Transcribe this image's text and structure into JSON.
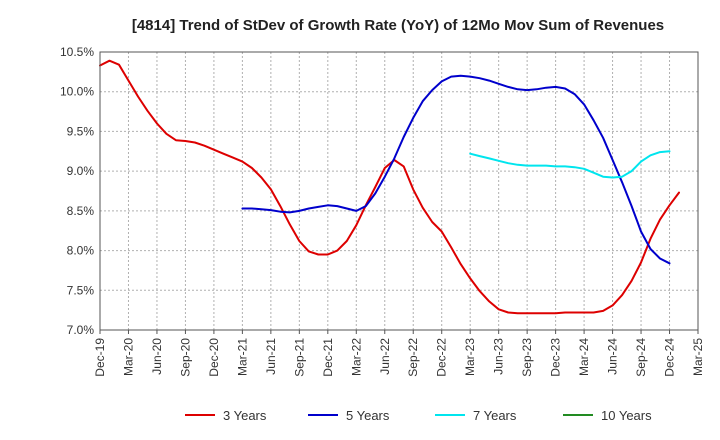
{
  "chart_data": {
    "type": "line",
    "title": "[4814]  Trend of StDev of Growth Rate (YoY) of 12Mo Mov Sum of Revenues",
    "xlabel": "",
    "ylabel": "",
    "ylim": [
      7.0,
      10.5
    ],
    "yticks": [
      7.0,
      7.5,
      8.0,
      8.5,
      9.0,
      9.5,
      10.0,
      10.5
    ],
    "ytick_labels": [
      "7.0%",
      "7.5%",
      "8.0%",
      "8.5%",
      "9.0%",
      "9.5%",
      "10.0%",
      "10.5%"
    ],
    "x_start": "Dec-19",
    "x_months_total": 63,
    "xtick_labels": [
      "Dec-19",
      "Mar-20",
      "Jun-20",
      "Sep-20",
      "Dec-20",
      "Mar-21",
      "Jun-21",
      "Sep-21",
      "Dec-21",
      "Mar-22",
      "Jun-22",
      "Sep-22",
      "Dec-22",
      "Mar-23",
      "Jun-23",
      "Sep-23",
      "Dec-23",
      "Mar-24",
      "Jun-24",
      "Sep-24",
      "Dec-24",
      "Mar-25"
    ],
    "grid": true,
    "legend_position": "bottom",
    "series": [
      {
        "name": "3 Years",
        "color": "#dd0000",
        "start_index": 0,
        "values": [
          10.33,
          10.39,
          10.34,
          10.14,
          9.94,
          9.76,
          9.6,
          9.47,
          9.39,
          9.38,
          9.36,
          9.32,
          9.27,
          9.22,
          9.17,
          9.12,
          9.04,
          8.92,
          8.77,
          8.56,
          8.33,
          8.12,
          7.99,
          7.95,
          7.95,
          8.0,
          8.12,
          8.32,
          8.57,
          8.8,
          9.04,
          9.14,
          9.06,
          8.77,
          8.54,
          8.36,
          8.24,
          8.04,
          7.83,
          7.65,
          7.49,
          7.36,
          7.26,
          7.22,
          7.21,
          7.21,
          7.21,
          7.21,
          7.21,
          7.22,
          7.22,
          7.22,
          7.22,
          7.24,
          7.31,
          7.44,
          7.62,
          7.85,
          8.15,
          8.39,
          8.57,
          8.73
        ]
      },
      {
        "name": "5 Years",
        "color": "#0000cc",
        "start_index": 15,
        "values": [
          8.53,
          8.53,
          8.52,
          8.51,
          8.49,
          8.48,
          8.5,
          8.53,
          8.55,
          8.57,
          8.56,
          8.53,
          8.5,
          8.56,
          8.72,
          8.93,
          9.16,
          9.43,
          9.67,
          9.88,
          10.02,
          10.13,
          10.19,
          10.2,
          10.19,
          10.17,
          10.14,
          10.1,
          10.06,
          10.03,
          10.02,
          10.03,
          10.05,
          10.06,
          10.04,
          9.97,
          9.84,
          9.64,
          9.42,
          9.14,
          8.86,
          8.56,
          8.24,
          8.02,
          7.9,
          7.84
        ]
      },
      {
        "name": "7 Years",
        "color": "#00e5ee",
        "start_index": 39,
        "values": [
          9.22,
          9.19,
          9.16,
          9.13,
          9.1,
          9.08,
          9.07,
          9.07,
          9.07,
          9.06,
          9.06,
          9.05,
          9.03,
          8.98,
          8.93,
          8.92,
          8.93,
          9.0,
          9.12,
          9.2,
          9.24,
          9.25
        ]
      },
      {
        "name": "10 Years",
        "color": "#228b22",
        "start_index": 0,
        "values": []
      }
    ]
  }
}
